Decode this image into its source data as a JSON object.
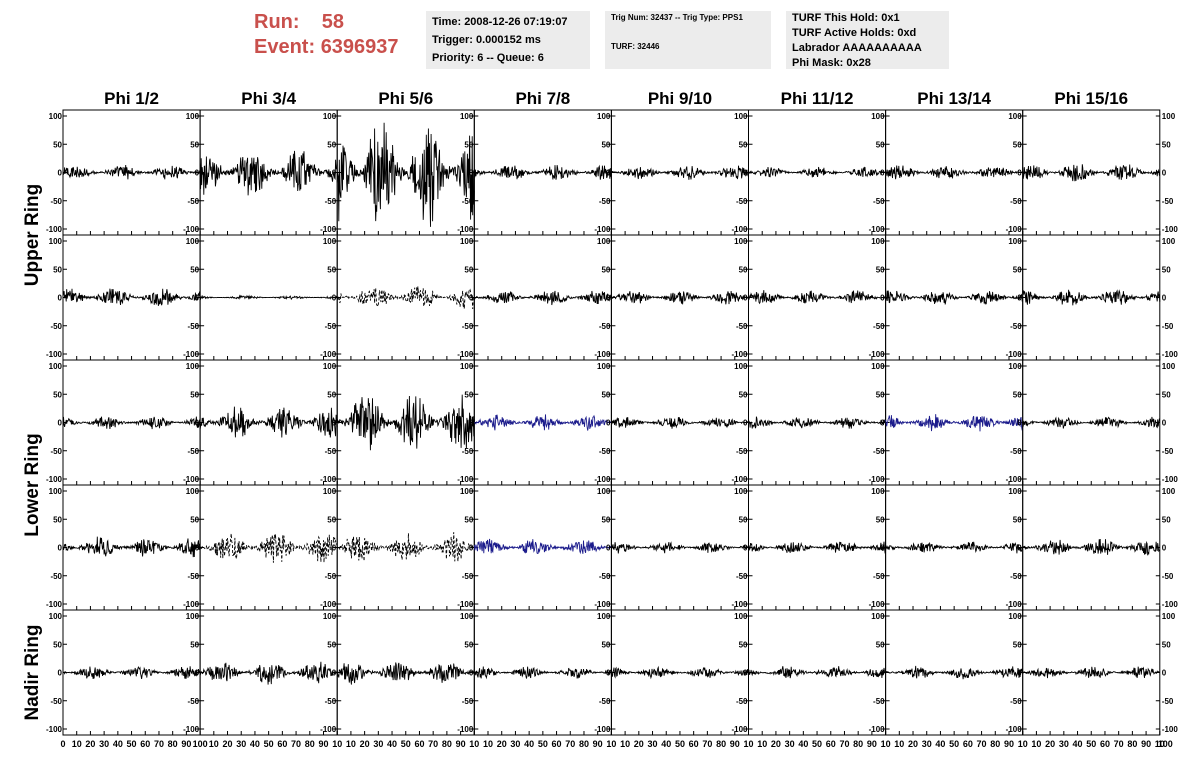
{
  "header": {
    "run_label": "Run:",
    "run_value": "58",
    "event_label": "Event:",
    "event_value": "6396937",
    "time": "Time: 2008-12-26 07:19:07",
    "trigger": "Trigger: 0.000152 ms",
    "priority": "Priority: 6 -- Queue: 6",
    "trig_num": "Trig Num: 32437 -- Trig Type: PPS1",
    "turf": "TURF: 32446",
    "turf_hold": "TURF This Hold: 0x1",
    "turf_active": "TURF Active Holds: 0xd",
    "labrador": "Labrador AAAAAAAAAA",
    "phi_mask": "Phi Mask: 0x28"
  },
  "colors": {
    "header_red": "#c9504c",
    "info_bg": "#ececec",
    "trace": "#000000",
    "highlight_trace": "#1c1c8c"
  },
  "chart_data": {
    "type": "line",
    "columns": [
      "Phi 1/2",
      "Phi 3/4",
      "Phi 5/6",
      "Phi 7/8",
      "Phi 9/10",
      "Phi 11/12",
      "Phi 13/14",
      "Phi 15/16"
    ],
    "row_groups": [
      {
        "label": "Upper Ring",
        "rows": [
          0,
          1
        ]
      },
      {
        "label": "Lower Ring",
        "rows": [
          2,
          3
        ]
      },
      {
        "label": "Nadir Ring",
        "rows": [
          4
        ]
      }
    ],
    "xlim": [
      0,
      100
    ],
    "ylim": [
      -100,
      100
    ],
    "yticks": [
      100,
      50,
      0,
      -50,
      -100
    ],
    "xticks_first": [
      "0",
      "10",
      "20",
      "30",
      "40",
      "50",
      "60",
      "70",
      "80",
      "90",
      "100"
    ],
    "xticks_other": [
      "10",
      "20",
      "30",
      "40",
      "50",
      "60",
      "70",
      "80",
      "90",
      "10"
    ],
    "xticks_last_end": "100",
    "waveforms": [
      [
        {
          "amplitude": 14,
          "style": "solid",
          "color": "black"
        },
        {
          "amplitude": 45,
          "style": "solid",
          "color": "black"
        },
        {
          "amplitude": 100,
          "style": "solid",
          "color": "black"
        },
        {
          "amplitude": 15,
          "style": "solid",
          "color": "black"
        },
        {
          "amplitude": 13,
          "style": "solid",
          "color": "black"
        },
        {
          "amplitude": 10,
          "style": "solid",
          "color": "black"
        },
        {
          "amplitude": 13,
          "style": "solid",
          "color": "black"
        },
        {
          "amplitude": 17,
          "style": "solid",
          "color": "black"
        }
      ],
      [
        {
          "amplitude": 17,
          "style": "solid",
          "color": "black"
        },
        {
          "amplitude": 3,
          "style": "solid",
          "color": "black"
        },
        {
          "amplitude": 22,
          "style": "dashed",
          "color": "black"
        },
        {
          "amplitude": 14,
          "style": "solid",
          "color": "black"
        },
        {
          "amplitude": 13,
          "style": "solid",
          "color": "black"
        },
        {
          "amplitude": 13,
          "style": "solid",
          "color": "black"
        },
        {
          "amplitude": 14,
          "style": "solid",
          "color": "black"
        },
        {
          "amplitude": 15,
          "style": "solid",
          "color": "black"
        }
      ],
      [
        {
          "amplitude": 12,
          "style": "solid",
          "color": "black"
        },
        {
          "amplitude": 30,
          "style": "solid",
          "color": "black"
        },
        {
          "amplitude": 55,
          "style": "solid",
          "color": "black"
        },
        {
          "amplitude": 15,
          "style": "solid",
          "color": "blue"
        },
        {
          "amplitude": 11,
          "style": "solid",
          "color": "black"
        },
        {
          "amplitude": 11,
          "style": "solid",
          "color": "black"
        },
        {
          "amplitude": 16,
          "style": "solid",
          "color": "blue"
        },
        {
          "amplitude": 11,
          "style": "solid",
          "color": "black"
        }
      ],
      [
        {
          "amplitude": 20,
          "style": "solid",
          "color": "black"
        },
        {
          "amplitude": 30,
          "style": "dashed",
          "color": "black"
        },
        {
          "amplitude": 28,
          "style": "dashed",
          "color": "black"
        },
        {
          "amplitude": 16,
          "style": "solid",
          "color": "blue"
        },
        {
          "amplitude": 11,
          "style": "solid",
          "color": "black"
        },
        {
          "amplitude": 12,
          "style": "solid",
          "color": "black"
        },
        {
          "amplitude": 11,
          "style": "solid",
          "color": "black"
        },
        {
          "amplitude": 16,
          "style": "solid",
          "color": "black"
        }
      ],
      [
        {
          "amplitude": 12,
          "style": "solid",
          "color": "black"
        },
        {
          "amplitude": 22,
          "style": "solid",
          "color": "black"
        },
        {
          "amplitude": 22,
          "style": "solid",
          "color": "black"
        },
        {
          "amplitude": 11,
          "style": "solid",
          "color": "black"
        },
        {
          "amplitude": 11,
          "style": "solid",
          "color": "black"
        },
        {
          "amplitude": 12,
          "style": "solid",
          "color": "black"
        },
        {
          "amplitude": 12,
          "style": "solid",
          "color": "black"
        },
        {
          "amplitude": 11,
          "style": "solid",
          "color": "black"
        }
      ]
    ]
  }
}
